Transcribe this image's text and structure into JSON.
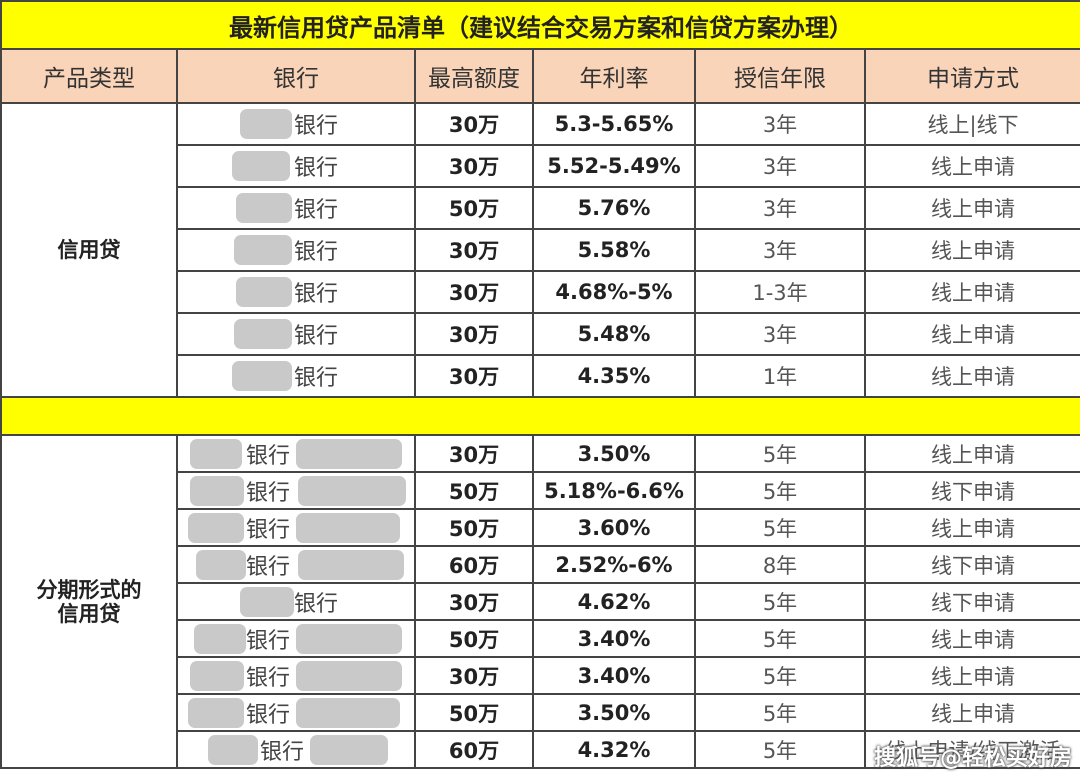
{
  "title": "最新信用贷产品清单（建议结合交易方案和信贷方案办理）",
  "headers": [
    "产品类型",
    "银行",
    "最高额度",
    "年利率",
    "授信年限",
    "申请方式"
  ],
  "sections": [
    {
      "type_label": "信用贷",
      "rows": [
        {
          "bank": "银行",
          "limit": "30万",
          "rate": "5.3-5.65%",
          "term": "3年",
          "method": "线上|线下"
        },
        {
          "bank": "银行",
          "limit": "30万",
          "rate": "5.52-5.49%",
          "term": "3年",
          "method": "线上申请"
        },
        {
          "bank": "银行",
          "limit": "50万",
          "rate": "5.76%",
          "term": "3年",
          "method": "线上申请"
        },
        {
          "bank": "银行",
          "limit": "30万",
          "rate": "5.58%",
          "term": "3年",
          "method": "线上申请"
        },
        {
          "bank": "银行",
          "limit": "30万",
          "rate": "4.68%-5%",
          "term": "1-3年",
          "method": "线上申请"
        },
        {
          "bank": "银行",
          "limit": "30万",
          "rate": "5.48%",
          "term": "3年",
          "method": "线上申请"
        },
        {
          "bank": "银行",
          "limit": "30万",
          "rate": "4.35%",
          "term": "1年",
          "method": "线上申请"
        }
      ]
    },
    {
      "type_label": "分期形式的\n信用贷",
      "rows": [
        {
          "bank": "银行",
          "limit": "30万",
          "rate": "3.50%",
          "term": "5年",
          "method": "线上申请"
        },
        {
          "bank": "银行",
          "limit": "50万",
          "rate": "5.18%-6.6%",
          "term": "5年",
          "method": "线下申请"
        },
        {
          "bank": "银行",
          "limit": "50万",
          "rate": "3.60%",
          "term": "5年",
          "method": "线上申请"
        },
        {
          "bank": "银行",
          "limit": "60万",
          "rate": "2.52%-6%",
          "term": "8年",
          "method": "线下申请"
        },
        {
          "bank": "银行",
          "limit": "30万",
          "rate": "4.62%",
          "term": "5年",
          "method": "线下申请"
        },
        {
          "bank": "银行",
          "limit": "50万",
          "rate": "3.40%",
          "term": "5年",
          "method": "线上申请"
        },
        {
          "bank": "银行",
          "limit": "30万",
          "rate": "3.40%",
          "term": "5年",
          "method": "线上申请"
        },
        {
          "bank": "银行",
          "limit": "50万",
          "rate": "3.50%",
          "term": "5年",
          "method": "线上申请"
        },
        {
          "bank": "银行",
          "limit": "60万",
          "rate": "4.32%",
          "term": "5年",
          "method": "线上申请/线下激活"
        }
      ]
    }
  ],
  "watermark": "搜狐号@轻松买好房"
}
